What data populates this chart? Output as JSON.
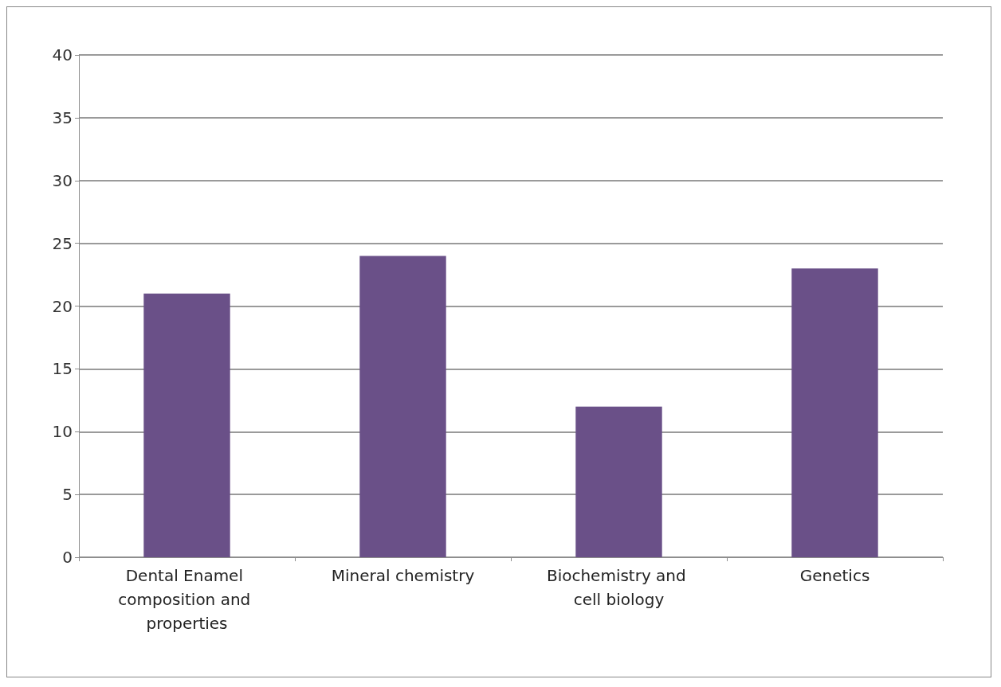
{
  "chart_data": {
    "type": "bar",
    "categories": [
      "Dental Enamel composition and properties",
      "Mineral chemistry",
      "Biochemistry and cell biology",
      "Genetics"
    ],
    "values": [
      21,
      24,
      12,
      23
    ],
    "color": "#6a5088",
    "ylim": [
      0,
      40
    ],
    "yticks": [
      0,
      5,
      10,
      15,
      20,
      25,
      30,
      35,
      40
    ],
    "grid": "y"
  }
}
